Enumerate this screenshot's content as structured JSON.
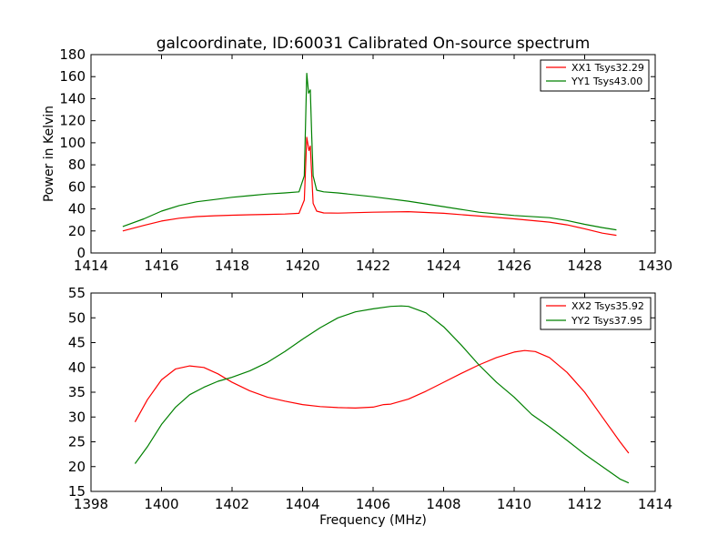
{
  "chart_data": [
    {
      "type": "line",
      "title": "galcoordinate, ID:60031 Calibrated On-source spectrum",
      "xlabel": "",
      "ylabel": "Power in Kelvin",
      "xlim": [
        1414,
        1430
      ],
      "ylim": [
        0,
        180
      ],
      "xticks": [
        1414,
        1416,
        1418,
        1420,
        1422,
        1424,
        1426,
        1428,
        1430
      ],
      "yticks": [
        0,
        20,
        40,
        60,
        80,
        100,
        120,
        140,
        160,
        180
      ],
      "legend": "top-right",
      "grid": false,
      "series": [
        {
          "name": "XX1 Tsys32.29",
          "color": "#ff0000",
          "x": [
            1414.9,
            1415.5,
            1416.0,
            1416.5,
            1417.0,
            1417.5,
            1418.0,
            1418.5,
            1419.0,
            1419.5,
            1419.9,
            1420.05,
            1420.12,
            1420.18,
            1420.22,
            1420.26,
            1420.3,
            1420.4,
            1420.6,
            1421.0,
            1422.0,
            1423.0,
            1424.0,
            1425.0,
            1426.0,
            1427.0,
            1427.5,
            1428.0,
            1428.5,
            1428.9
          ],
          "y": [
            20,
            25,
            29,
            31.5,
            33,
            33.8,
            34.3,
            34.7,
            35,
            35.3,
            36,
            48,
            105,
            93,
            97,
            70,
            45,
            38,
            36.3,
            36.2,
            37,
            37.5,
            36,
            33.5,
            31,
            28,
            25.5,
            22,
            18,
            16
          ]
        },
        {
          "name": "YY1 Tsys43.00",
          "color": "#008000",
          "x": [
            1414.9,
            1415.5,
            1416.0,
            1416.5,
            1417.0,
            1417.5,
            1418.0,
            1418.5,
            1419.0,
            1419.5,
            1419.9,
            1420.05,
            1420.12,
            1420.17,
            1420.22,
            1420.26,
            1420.3,
            1420.4,
            1420.6,
            1421.0,
            1422.0,
            1423.0,
            1424.0,
            1425.0,
            1426.0,
            1427.0,
            1427.5,
            1428.0,
            1428.5,
            1428.9
          ],
          "y": [
            24,
            31,
            38,
            43,
            46.5,
            48.5,
            50.5,
            52,
            53.5,
            54.5,
            55.5,
            70,
            163,
            145,
            148,
            105,
            70,
            57,
            55.5,
            54.5,
            51,
            47,
            42,
            37,
            34,
            32,
            29.5,
            26,
            23,
            21
          ]
        }
      ]
    },
    {
      "type": "line",
      "title": "",
      "xlabel": "Frequency (MHz)",
      "ylabel": "",
      "xlim": [
        1398,
        1414
      ],
      "ylim": [
        15,
        55
      ],
      "xticks": [
        1398,
        1400,
        1402,
        1404,
        1406,
        1408,
        1410,
        1412,
        1414
      ],
      "yticks": [
        15,
        20,
        25,
        30,
        35,
        40,
        45,
        50,
        55
      ],
      "legend": "top-right",
      "grid": false,
      "series": [
        {
          "name": "XX2 Tsys35.92",
          "color": "#ff0000",
          "x": [
            1399.25,
            1399.6,
            1400.0,
            1400.4,
            1400.8,
            1401.2,
            1401.6,
            1402.0,
            1402.5,
            1403.0,
            1403.5,
            1404.0,
            1404.5,
            1405.0,
            1405.5,
            1406.0,
            1406.3,
            1406.5,
            1407.0,
            1407.5,
            1408.0,
            1408.5,
            1409.0,
            1409.5,
            1410.0,
            1410.3,
            1410.6,
            1411.0,
            1411.5,
            1412.0,
            1412.5,
            1413.0,
            1413.25
          ],
          "y": [
            29,
            33.5,
            37.5,
            39.7,
            40.3,
            40,
            38.7,
            37,
            35.3,
            34,
            33.2,
            32.5,
            32.1,
            31.9,
            31.8,
            32,
            32.5,
            32.6,
            33.6,
            35.2,
            37,
            38.8,
            40.5,
            42,
            43.1,
            43.4,
            43.2,
            42,
            39,
            35,
            30,
            25,
            22.7
          ]
        },
        {
          "name": "YY2 Tsys37.95",
          "color": "#008000",
          "x": [
            1399.25,
            1399.6,
            1400.0,
            1400.4,
            1400.8,
            1401.2,
            1401.6,
            1402.0,
            1402.5,
            1403.0,
            1403.5,
            1404.0,
            1404.5,
            1405.0,
            1405.5,
            1406.0,
            1406.5,
            1406.8,
            1407.0,
            1407.5,
            1408.0,
            1408.5,
            1409.0,
            1409.5,
            1410.0,
            1410.5,
            1411.0,
            1411.5,
            1412.0,
            1412.5,
            1413.0,
            1413.25
          ],
          "y": [
            20.6,
            24,
            28.5,
            32,
            34.5,
            36,
            37.2,
            38,
            39.3,
            41,
            43.2,
            45.7,
            48,
            50,
            51.2,
            51.8,
            52.3,
            52.4,
            52.3,
            51,
            48.2,
            44.5,
            40.5,
            37,
            34,
            30.5,
            28,
            25.3,
            22.5,
            20,
            17.5,
            16.7
          ]
        }
      ]
    }
  ]
}
